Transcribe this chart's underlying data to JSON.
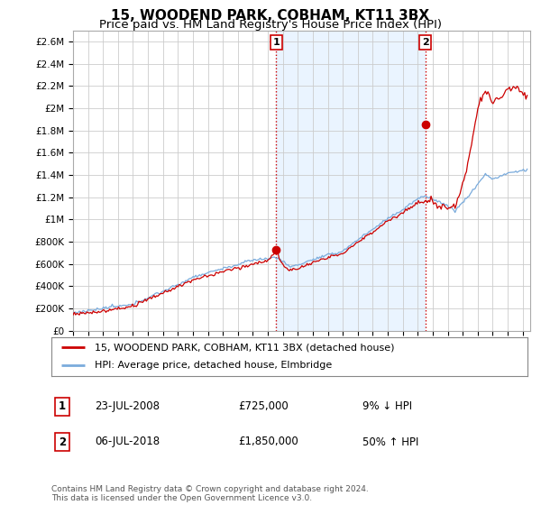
{
  "title": "15, WOODEND PARK, COBHAM, KT11 3BX",
  "subtitle": "Price paid vs. HM Land Registry's House Price Index (HPI)",
  "ylim": [
    0,
    2700000
  ],
  "yticks": [
    0,
    200000,
    400000,
    600000,
    800000,
    1000000,
    1200000,
    1400000,
    1600000,
    1800000,
    2000000,
    2200000,
    2400000,
    2600000
  ],
  "ytick_labels": [
    "£0",
    "£200K",
    "£400K",
    "£600K",
    "£800K",
    "£1M",
    "£1.2M",
    "£1.4M",
    "£1.6M",
    "£1.8M",
    "£2M",
    "£2.2M",
    "£2.4M",
    "£2.6M"
  ],
  "xlim_start": 1995.0,
  "xlim_end": 2025.5,
  "purchase1_x": 2008.55,
  "purchase1_y": 725000,
  "purchase1_label": "1",
  "purchase1_date": "23-JUL-2008",
  "purchase1_price": "£725,000",
  "purchase1_hpi": "9% ↓ HPI",
  "purchase2_x": 2018.51,
  "purchase2_y": 1850000,
  "purchase2_label": "2",
  "purchase2_date": "06-JUL-2018",
  "purchase2_price": "£1,850,000",
  "purchase2_hpi": "50% ↑ HPI",
  "hpi_color": "#7aabdc",
  "price_color": "#cc0000",
  "vline_color": "#cc0000",
  "grid_color": "#cccccc",
  "shade_color": "#ddeeff",
  "background_color": "#ffffff",
  "legend_label1": "15, WOODEND PARK, COBHAM, KT11 3BX (detached house)",
  "legend_label2": "HPI: Average price, detached house, Elmbridge",
  "footnote": "Contains HM Land Registry data © Crown copyright and database right 2024.\nThis data is licensed under the Open Government Licence v3.0.",
  "title_fontsize": 11,
  "subtitle_fontsize": 9.5
}
